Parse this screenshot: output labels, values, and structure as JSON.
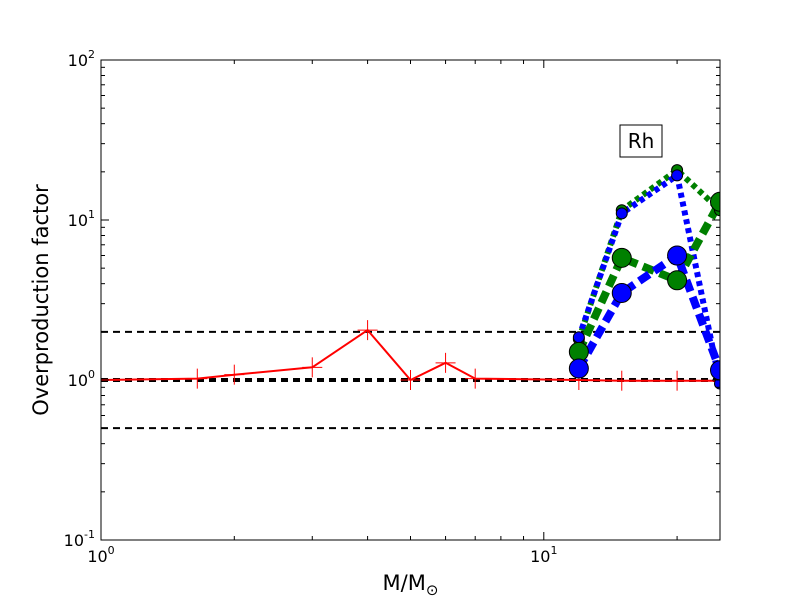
{
  "chart_data": {
    "type": "line",
    "xlabel": "M/M",
    "xlabel_subscript": "⊙",
    "ylabel": "Overproduction factor",
    "xscale": "log",
    "yscale": "log",
    "xlim": [
      1,
      25
    ],
    "ylim": [
      0.1,
      100
    ],
    "x_ticks": [
      {
        "value": 1,
        "base": "10",
        "exp": "0"
      },
      {
        "value": 10,
        "base": "10",
        "exp": "1"
      }
    ],
    "y_ticks": [
      {
        "value": 0.1,
        "base": "10",
        "exp": "-1"
      },
      {
        "value": 1,
        "base": "10",
        "exp": "0"
      },
      {
        "value": 10,
        "base": "10",
        "exp": "1"
      },
      {
        "value": 100,
        "base": "10",
        "exp": "2"
      }
    ],
    "annotation": "Rh",
    "reference_lines": [
      {
        "y": 2.0,
        "style": "dashed",
        "color": "#000000"
      },
      {
        "y": 1.0,
        "style": "dashed",
        "color": "#000000"
      },
      {
        "y": 0.5,
        "style": "dashed",
        "color": "#000000"
      }
    ],
    "series": [
      {
        "color": "#ff0000",
        "style": "solid",
        "marker": "plus",
        "points": [
          [
            1.0,
            1.0
          ],
          [
            1.65,
            1.02
          ],
          [
            2.0,
            1.08
          ],
          [
            3.0,
            1.2
          ],
          [
            4.0,
            2.05
          ],
          [
            5.0,
            1.0
          ],
          [
            6.0,
            1.28
          ],
          [
            7.0,
            1.02
          ],
          [
            12.0,
            1.0
          ],
          [
            15.0,
            0.99
          ],
          [
            20.0,
            0.99
          ],
          [
            25.0,
            0.99
          ]
        ]
      },
      {
        "color": "#008000",
        "style": "dotted",
        "marker": "circle",
        "marker_size": "small",
        "points": [
          [
            12.0,
            1.8
          ],
          [
            15.0,
            11.5
          ],
          [
            20.0,
            20.5
          ],
          [
            25.0,
            11.5
          ]
        ]
      },
      {
        "color": "#0000ff",
        "style": "dotted",
        "marker": "circle",
        "marker_size": "small",
        "points": [
          [
            12.0,
            1.85
          ],
          [
            15.0,
            11.0
          ],
          [
            20.0,
            19.0
          ],
          [
            25.0,
            0.95
          ]
        ]
      },
      {
        "color": "#008000",
        "style": "dashed",
        "marker": "circle",
        "marker_size": "large",
        "points": [
          [
            12.0,
            1.5
          ],
          [
            15.0,
            5.8
          ],
          [
            20.0,
            4.2
          ],
          [
            25.0,
            13.0
          ]
        ]
      },
      {
        "color": "#0000ff",
        "style": "dashed",
        "marker": "circle",
        "marker_size": "large",
        "points": [
          [
            12.0,
            1.18
          ],
          [
            15.0,
            3.5
          ],
          [
            20.0,
            6.0
          ],
          [
            25.0,
            1.15
          ]
        ]
      }
    ]
  }
}
